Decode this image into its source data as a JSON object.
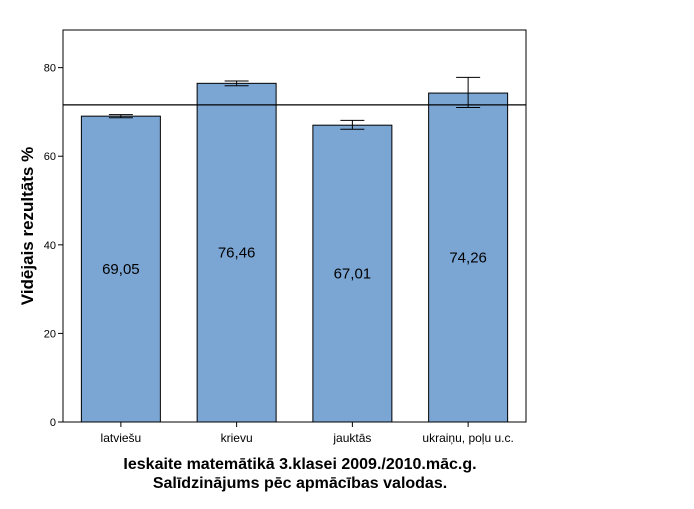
{
  "chart_data": {
    "type": "bar",
    "categories": [
      "latviešu",
      "krievu",
      "jauktās",
      "ukraiņu, poļu u.c."
    ],
    "values": [
      69.05,
      76.46,
      67.01,
      74.26
    ],
    "value_labels": [
      "69,05",
      "76,46",
      "67,01",
      "74,26"
    ],
    "error_low": [
      68.7,
      75.9,
      66.1,
      71.0
    ],
    "error_high": [
      69.4,
      77.0,
      68.1,
      77.8
    ],
    "reference_line": 71.6,
    "ylabel": "Vidējais rezultāts %",
    "xlabel_lines": [
      "Ieskaite matemātikā 3.klasei 2009./2010.māc.g.",
      "Salīdzinājums pēc apmācības valodas."
    ],
    "yticks": [
      0,
      20,
      40,
      60,
      80
    ],
    "ylim": [
      0,
      88.5
    ],
    "grid": false,
    "bar_color": "#7ba6d4",
    "bar_stroke": "#000000"
  }
}
